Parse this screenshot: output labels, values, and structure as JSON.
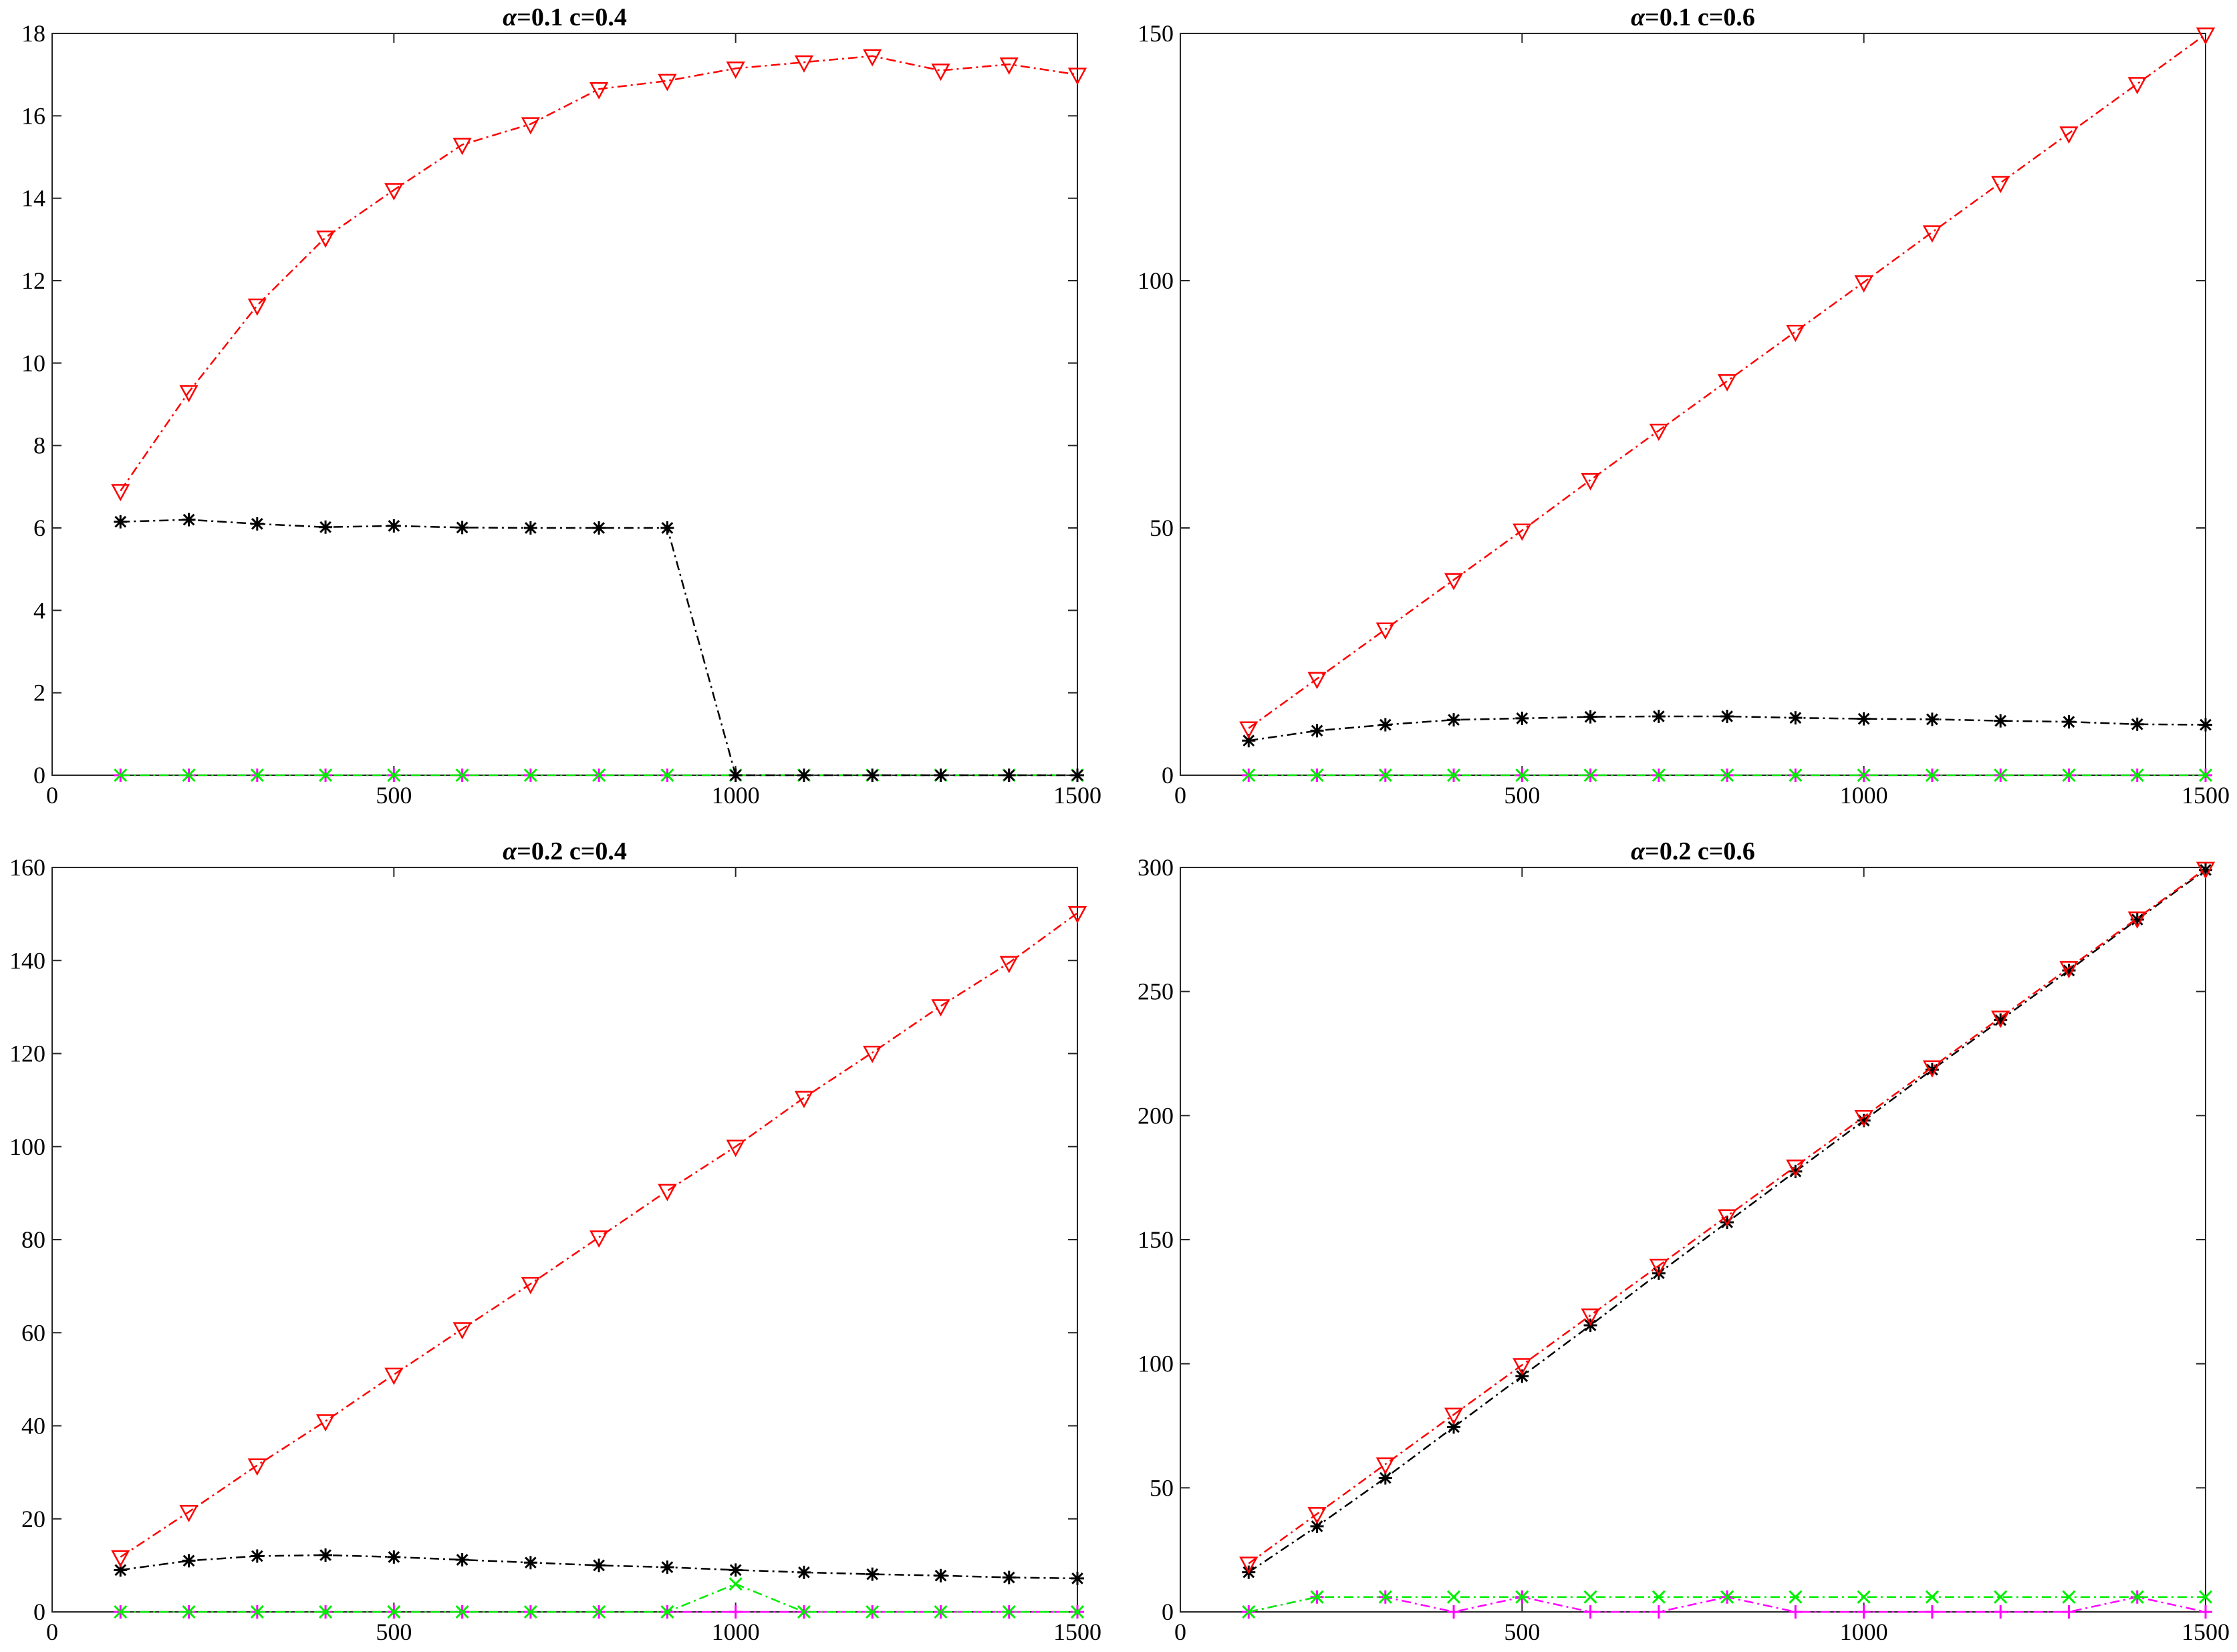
{
  "chart_data": [
    {
      "type": "line",
      "title_symbol": "α",
      "title_text": "=0.1 c=0.4",
      "xlim": [
        0,
        1500
      ],
      "ylim": [
        0,
        18
      ],
      "xticks": [
        0,
        500,
        1000,
        1500
      ],
      "yticks": [
        0,
        2,
        4,
        6,
        8,
        10,
        12,
        14,
        16,
        18
      ],
      "x": [
        100,
        200,
        300,
        400,
        500,
        600,
        700,
        800,
        900,
        1000,
        1100,
        1200,
        1300,
        1400,
        1500
      ],
      "series": [
        {
          "color": "#ff0000",
          "marker": "triangle-down",
          "values": [
            6.9,
            9.3,
            11.4,
            13.05,
            14.2,
            15.3,
            15.8,
            16.65,
            16.85,
            17.15,
            17.3,
            17.45,
            17.1,
            17.25,
            17.0
          ]
        },
        {
          "color": "#000000",
          "marker": "asterisk",
          "values": [
            6.15,
            6.2,
            6.1,
            6.02,
            6.05,
            6.01,
            6.0,
            6.0,
            6.0,
            0.0,
            0.0,
            0.0,
            0.0,
            0.0,
            0.0
          ]
        },
        {
          "color": "#00ee00",
          "marker": "x",
          "values": [
            0,
            0,
            0,
            0,
            0,
            0,
            0,
            0,
            0,
            0,
            0,
            0,
            0,
            0,
            0
          ]
        },
        {
          "color": "#ff00ff",
          "marker": "plus",
          "values": [
            0,
            0,
            0,
            0,
            0,
            0,
            0,
            0,
            0,
            0,
            0,
            0,
            0,
            0,
            0
          ]
        }
      ]
    },
    {
      "type": "line",
      "title_symbol": "α",
      "title_text": "=0.1 c=0.6",
      "xlim": [
        0,
        1500
      ],
      "ylim": [
        0,
        150
      ],
      "xticks": [
        0,
        500,
        1000,
        1500
      ],
      "yticks": [
        0,
        50,
        100,
        150
      ],
      "x": [
        100,
        200,
        300,
        400,
        500,
        600,
        700,
        800,
        900,
        1000,
        1100,
        1200,
        1300,
        1400,
        1500
      ],
      "series": [
        {
          "color": "#ff0000",
          "marker": "triangle-down",
          "values": [
            9.5,
            19.5,
            29.5,
            39.5,
            49.5,
            59.7,
            69.7,
            79.7,
            89.7,
            99.7,
            109.8,
            119.8,
            129.8,
            139.8,
            149.8
          ]
        },
        {
          "color": "#000000",
          "marker": "asterisk",
          "values": [
            7.0,
            9.0,
            10.2,
            11.2,
            11.5,
            11.8,
            11.9,
            11.9,
            11.6,
            11.4,
            11.3,
            11.0,
            10.8,
            10.3,
            10.2
          ]
        },
        {
          "color": "#00ee00",
          "marker": "x",
          "values": [
            0,
            0,
            0,
            0,
            0,
            0,
            0,
            0,
            0,
            0,
            0,
            0,
            0,
            0,
            0
          ]
        },
        {
          "color": "#ff00ff",
          "marker": "plus",
          "values": [
            0,
            0,
            0,
            0,
            0,
            0,
            0,
            0,
            0,
            0,
            0,
            0,
            0,
            0,
            0
          ]
        }
      ]
    },
    {
      "type": "line",
      "title_symbol": "α",
      "title_text": "=0.2 c=0.4",
      "xlim": [
        0,
        1500
      ],
      "ylim": [
        0,
        160
      ],
      "xticks": [
        0,
        500,
        1000,
        1500
      ],
      "yticks": [
        0,
        20,
        40,
        60,
        80,
        100,
        120,
        140,
        160
      ],
      "x": [
        100,
        200,
        300,
        400,
        500,
        600,
        700,
        800,
        900,
        1000,
        1100,
        1200,
        1300,
        1400,
        1500
      ],
      "series": [
        {
          "color": "#ff0000",
          "marker": "triangle-down",
          "values": [
            11.8,
            21.5,
            31.5,
            41.0,
            51.0,
            60.8,
            70.5,
            80.5,
            90.5,
            100.0,
            110.5,
            120.2,
            130.2,
            139.5,
            150.2
          ]
        },
        {
          "color": "#000000",
          "marker": "asterisk",
          "values": [
            9.0,
            11.0,
            12.0,
            12.2,
            11.8,
            11.2,
            10.6,
            10.0,
            9.6,
            9.0,
            8.5,
            8.1,
            7.8,
            7.4,
            7.2
          ]
        },
        {
          "color": "#00ee00",
          "marker": "x",
          "values": [
            0,
            0,
            0,
            0,
            0,
            0,
            0,
            0,
            0,
            6.0,
            0,
            0,
            0,
            0,
            0
          ]
        },
        {
          "color": "#ff00ff",
          "marker": "plus",
          "values": [
            0,
            0,
            0,
            0,
            0,
            0,
            0,
            0,
            0,
            0,
            0,
            0,
            0,
            0,
            0
          ]
        }
      ]
    },
    {
      "type": "line",
      "title_symbol": "α",
      "title_text": "=0.2 c=0.6",
      "xlim": [
        0,
        1500
      ],
      "ylim": [
        0,
        300
      ],
      "xticks": [
        0,
        500,
        1000,
        1500
      ],
      "yticks": [
        0,
        50,
        100,
        150,
        200,
        250,
        300
      ],
      "x": [
        100,
        200,
        300,
        400,
        500,
        600,
        700,
        800,
        900,
        1000,
        1100,
        1200,
        1300,
        1400,
        1500
      ],
      "series": [
        {
          "color": "#ff0000",
          "marker": "triangle-down",
          "values": [
            19.5,
            39.5,
            59.5,
            79.5,
            99.5,
            119.5,
            139.5,
            159.5,
            179.5,
            199.5,
            219.5,
            239.5,
            259.5,
            279.5,
            299.5
          ]
        },
        {
          "color": "#000000",
          "marker": "asterisk",
          "values": [
            16.0,
            34.5,
            54.0,
            74.5,
            95.0,
            115.5,
            136.5,
            157.0,
            177.5,
            198.0,
            218.5,
            238.5,
            258.5,
            279.0,
            299.0
          ]
        },
        {
          "color": "#00ee00",
          "marker": "x",
          "values": [
            0,
            6,
            6,
            6,
            6,
            6,
            6,
            6,
            6,
            6,
            6,
            6,
            6,
            6,
            6
          ]
        },
        {
          "color": "#ff00ff",
          "marker": "plus",
          "values": [
            0,
            6,
            6,
            0,
            6,
            0,
            0,
            6,
            0,
            0,
            0,
            0,
            0,
            6,
            0
          ]
        }
      ]
    }
  ]
}
